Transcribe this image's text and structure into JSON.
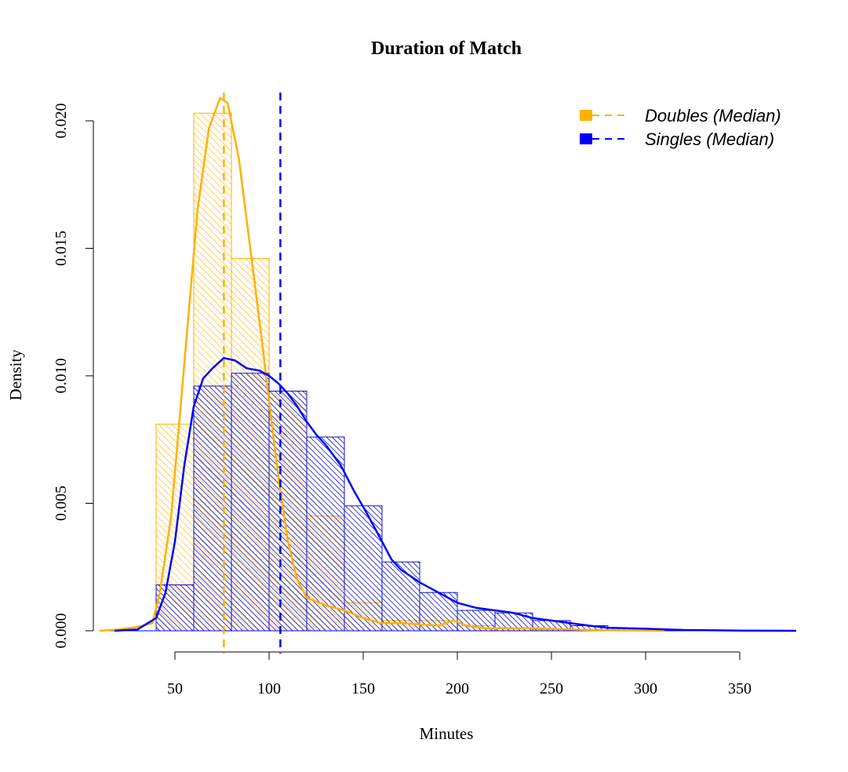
{
  "chart_data": {
    "type": "histogram",
    "title": "Duration of Match",
    "xlabel": "Minutes",
    "ylabel": "Density",
    "xlim": [
      10,
      380
    ],
    "ylim": [
      0,
      0.021
    ],
    "x_ticks": [
      50,
      100,
      150,
      200,
      250,
      300,
      350
    ],
    "y_ticks": [
      0.0,
      0.005,
      0.01,
      0.015,
      0.02
    ],
    "y_tick_labels": [
      "0.000",
      "0.005",
      "0.010",
      "0.015",
      "0.020"
    ],
    "bin_edges": [
      40,
      60,
      80,
      100,
      120,
      140,
      160,
      180,
      200,
      220,
      240,
      260,
      280,
      300,
      320
    ],
    "legend_position": "top-right",
    "grid": false,
    "series": [
      {
        "name": "Doubles (Median)",
        "color": "#FFB000",
        "median": 76,
        "densities": [
          0.0081,
          0.0203,
          0.0146,
          0.0094,
          0.0045,
          0.0011,
          0.0004,
          0.0004,
          0.0002,
          0.0001,
          5e-05,
          3e-05,
          2e-05,
          1e-05
        ],
        "kde": [
          [
            10,
            0
          ],
          [
            20,
            5e-05
          ],
          [
            30,
            0.00015
          ],
          [
            38,
            0.0003
          ],
          [
            42,
            0.0015
          ],
          [
            48,
            0.0045
          ],
          [
            55,
            0.0105
          ],
          [
            62,
            0.0165
          ],
          [
            68,
            0.0197
          ],
          [
            74,
            0.0209
          ],
          [
            78,
            0.0207
          ],
          [
            84,
            0.0185
          ],
          [
            90,
            0.015
          ],
          [
            96,
            0.0115
          ],
          [
            100,
            0.009
          ],
          [
            105,
            0.006
          ],
          [
            110,
            0.0035
          ],
          [
            115,
            0.002
          ],
          [
            120,
            0.0013
          ],
          [
            130,
            0.001
          ],
          [
            140,
            0.0008
          ],
          [
            150,
            0.0005
          ],
          [
            160,
            0.0003
          ],
          [
            170,
            0.0003
          ],
          [
            180,
            0.00025
          ],
          [
            190,
            0.0002
          ],
          [
            198,
            0.0004
          ],
          [
            205,
            0.0002
          ],
          [
            215,
            0.0001
          ],
          [
            240,
            0.0001
          ],
          [
            270,
            3e-05
          ],
          [
            300,
            1e-05
          ],
          [
            310,
            0
          ]
        ]
      },
      {
        "name": "Singles (Median)",
        "color": "#0000FF",
        "median": 106,
        "densities": [
          0.0018,
          0.0096,
          0.0101,
          0.0094,
          0.0076,
          0.0049,
          0.0027,
          0.0015,
          0.0008,
          0.0007,
          0.0004,
          0.0002,
          0.0001,
          5e-05
        ],
        "kde": [
          [
            18,
            0
          ],
          [
            30,
            5e-05
          ],
          [
            40,
            0.0005
          ],
          [
            45,
            0.0015
          ],
          [
            50,
            0.0035
          ],
          [
            55,
            0.0065
          ],
          [
            60,
            0.0088
          ],
          [
            65,
            0.0099
          ],
          [
            70,
            0.0103
          ],
          [
            76,
            0.0107
          ],
          [
            82,
            0.0106
          ],
          [
            88,
            0.0103
          ],
          [
            95,
            0.0102
          ],
          [
            100,
            0.01
          ],
          [
            105,
            0.0097
          ],
          [
            110,
            0.0093
          ],
          [
            115,
            0.0088
          ],
          [
            120,
            0.0082
          ],
          [
            125,
            0.0077
          ],
          [
            130,
            0.0073
          ],
          [
            138,
            0.0065
          ],
          [
            145,
            0.0055
          ],
          [
            152,
            0.0046
          ],
          [
            160,
            0.0035
          ],
          [
            165,
            0.0028
          ],
          [
            170,
            0.0024
          ],
          [
            180,
            0.0019
          ],
          [
            190,
            0.0015
          ],
          [
            200,
            0.0011
          ],
          [
            210,
            0.0009
          ],
          [
            220,
            0.0008
          ],
          [
            230,
            0.0007
          ],
          [
            240,
            0.0005
          ],
          [
            250,
            0.0004
          ],
          [
            260,
            0.0003
          ],
          [
            270,
            0.0002
          ],
          [
            280,
            0.00012
          ],
          [
            300,
            8e-05
          ],
          [
            320,
            3e-05
          ],
          [
            350,
            1e-05
          ],
          [
            380,
            0
          ]
        ]
      }
    ]
  }
}
